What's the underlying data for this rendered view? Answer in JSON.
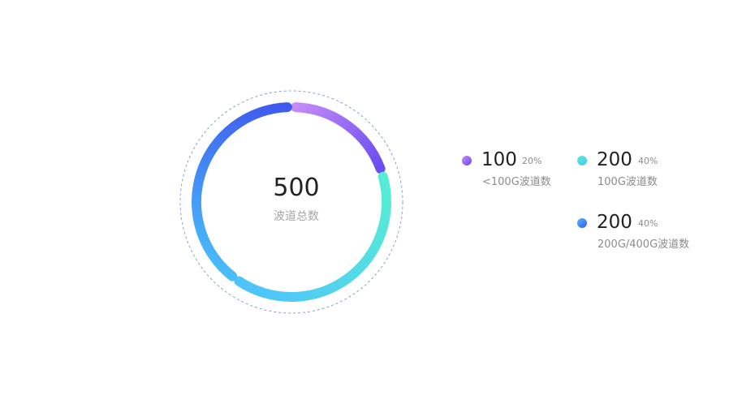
{
  "chart_data": {
    "type": "pie",
    "variant": "donut",
    "total": 500,
    "center_label": "波道总数",
    "series": [
      {
        "name": "<100G波道数",
        "value": 100,
        "percent": "20%",
        "color_start": "#c58bf7",
        "color_end": "#6a4cf2"
      },
      {
        "name": "100G波道数",
        "value": 200,
        "percent": "40%",
        "color_start": "#57ecd6",
        "color_end": "#4ec3fb"
      },
      {
        "name": "200G/400G波道数",
        "value": 200,
        "percent": "40%",
        "color_start": "#48bdfa",
        "color_end": "#3f59ef"
      }
    ],
    "legend_position": "right",
    "outer_ring_color": "#8aa0d0"
  }
}
